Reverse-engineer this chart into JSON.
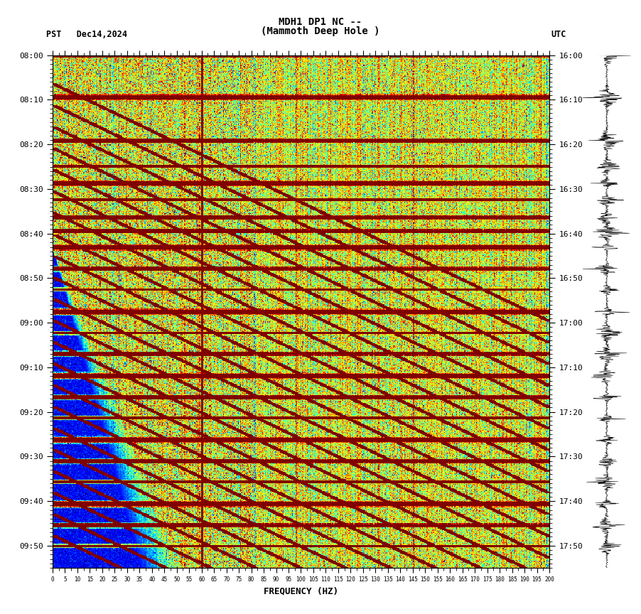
{
  "title_line1": "MDH1 DP1 NC --",
  "title_line2": "(Mammoth Deep Hole )",
  "left_label": "PST   Dec14,2024",
  "right_label": "UTC",
  "xlabel": "FREQUENCY (HZ)",
  "freq_min": 0,
  "freq_max": 200,
  "freq_ticks": [
    0,
    5,
    10,
    15,
    20,
    25,
    30,
    35,
    40,
    45,
    50,
    55,
    60,
    65,
    70,
    75,
    80,
    85,
    90,
    95,
    100,
    105,
    110,
    115,
    120,
    125,
    130,
    135,
    140,
    145,
    150,
    155,
    160,
    165,
    170,
    175,
    180,
    185,
    190,
    195,
    200
  ],
  "time_start_pst": "08:00",
  "time_end_pst": "09:55",
  "time_start_utc": "16:00",
  "time_end_utc": "17:55",
  "pst_ticks": [
    "08:00",
    "08:10",
    "08:20",
    "08:30",
    "08:40",
    "08:50",
    "09:00",
    "09:10",
    "09:20",
    "09:30",
    "09:40",
    "09:50"
  ],
  "utc_ticks": [
    "16:00",
    "16:10",
    "16:20",
    "16:30",
    "16:40",
    "16:50",
    "17:00",
    "17:10",
    "17:20",
    "17:30",
    "17:40",
    "17:50"
  ],
  "vertical_line_freq": 60,
  "fig_width": 9.02,
  "fig_height": 8.64,
  "dpi": 100,
  "background_color": "#ffffff"
}
